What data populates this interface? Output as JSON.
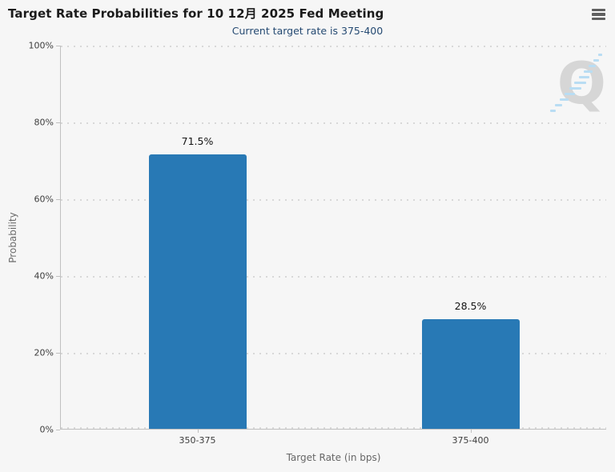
{
  "header": {
    "menu_icon": "hamburger-icon"
  },
  "chart_data": {
    "type": "bar",
    "title": "Target Rate Probabilities for 10 12月 2025 Fed Meeting",
    "subtitle": "Current target rate is 375-400",
    "categories": [
      "350-375",
      "375-400"
    ],
    "values": [
      71.5,
      28.5
    ],
    "value_labels": [
      "71.5%",
      "28.5%"
    ],
    "xlabel": "Target Rate (in bps)",
    "ylabel": "Probability",
    "ylim": [
      0,
      100
    ],
    "yticks": [
      0,
      20,
      40,
      60,
      80,
      100
    ],
    "ytick_labels": [
      "0%",
      "20%",
      "40%",
      "60%",
      "80%",
      "100%"
    ],
    "grid": "horizontal-dotted",
    "legend_position": "none"
  },
  "watermark": {
    "letter": "Q"
  },
  "colors": {
    "background": "#f6f6f6",
    "bar": "#2879b5",
    "subtitle": "#254a72",
    "title": "#1b1b1b",
    "axis_line": "#c0c0c0",
    "grid_dot": "#d8d8d8",
    "tick_label": "#3d3d3d",
    "axis_title": "#666666",
    "menu_icon": "#606060",
    "watermark_letter": "#d6d6d6",
    "watermark_slash": "#b9ddf3"
  }
}
